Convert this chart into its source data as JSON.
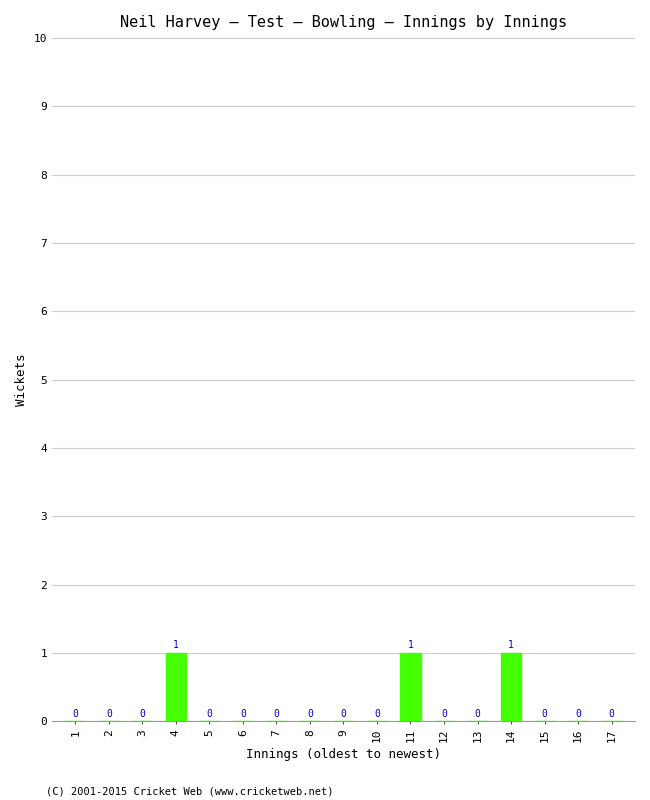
{
  "title": "Neil Harvey – Test – Bowling – Innings by Innings",
  "xlabel": "Innings (oldest to newest)",
  "ylabel": "Wickets",
  "innings": [
    1,
    2,
    3,
    4,
    5,
    6,
    7,
    8,
    9,
    10,
    11,
    12,
    13,
    14,
    15,
    16,
    17
  ],
  "wickets": [
    0,
    0,
    0,
    1,
    0,
    0,
    0,
    0,
    0,
    0,
    1,
    0,
    0,
    1,
    0,
    0,
    0
  ],
  "bar_color": "#44ff00",
  "label_color": "#0000cc",
  "ylim": [
    0,
    10
  ],
  "yticks": [
    0,
    1,
    2,
    3,
    4,
    5,
    6,
    7,
    8,
    9,
    10
  ],
  "background_color": "#ffffff",
  "grid_color": "#cccccc",
  "footer": "(C) 2001-2015 Cricket Web (www.cricketweb.net)",
  "title_fontsize": 11,
  "axis_label_fontsize": 9,
  "tick_fontsize": 8,
  "data_label_fontsize": 7,
  "footer_fontsize": 7.5
}
